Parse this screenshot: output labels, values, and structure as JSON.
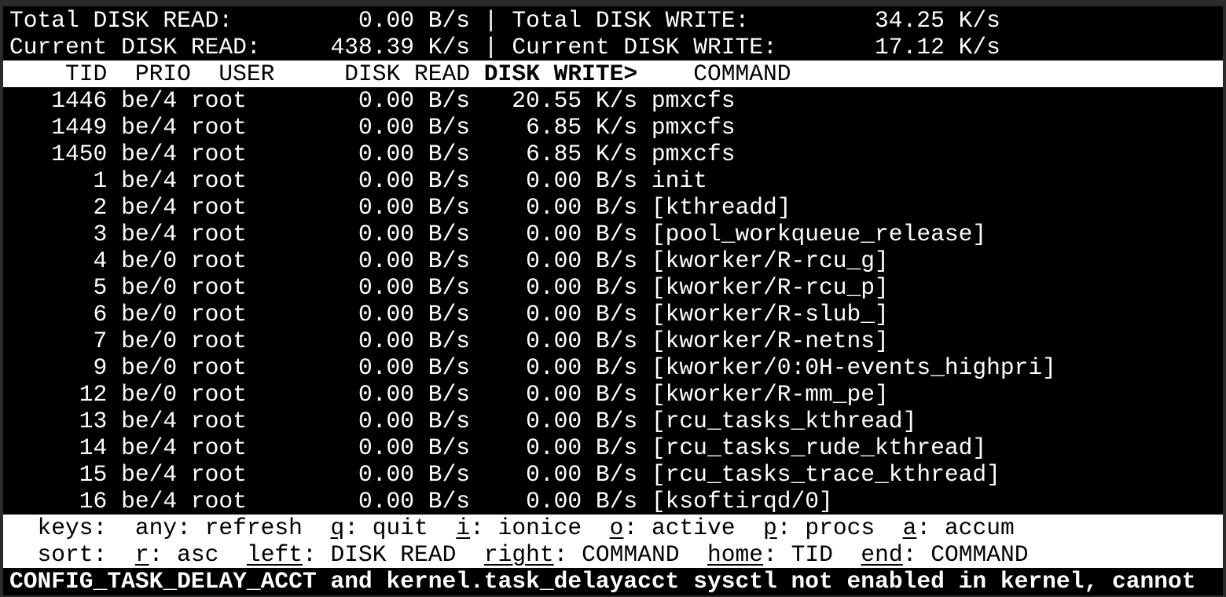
{
  "summary": {
    "total_read_label": "Total DISK READ:",
    "total_read": "0.00 B/s",
    "total_write_label": "Total DISK WRITE:",
    "total_write": "34.25 K/s",
    "current_read_label": "Current DISK READ:",
    "current_read": "438.39 K/s",
    "current_write_label": "Current DISK WRITE:",
    "current_write": "17.12 K/s",
    "separator": "|"
  },
  "header": {
    "tid": "TID",
    "prio": "PRIO",
    "user": "USER",
    "read": "DISK READ",
    "write": "DISK WRITE>",
    "command": "COMMAND"
  },
  "rows": [
    {
      "tid": "1446",
      "prio": "be/4",
      "user": "root",
      "read": "0.00 B/s",
      "write": "20.55 K/s",
      "command": "pmxcfs"
    },
    {
      "tid": "1449",
      "prio": "be/4",
      "user": "root",
      "read": "0.00 B/s",
      "write": "6.85 K/s",
      "command": "pmxcfs"
    },
    {
      "tid": "1450",
      "prio": "be/4",
      "user": "root",
      "read": "0.00 B/s",
      "write": "6.85 K/s",
      "command": "pmxcfs"
    },
    {
      "tid": "1",
      "prio": "be/4",
      "user": "root",
      "read": "0.00 B/s",
      "write": "0.00 B/s",
      "command": "init"
    },
    {
      "tid": "2",
      "prio": "be/4",
      "user": "root",
      "read": "0.00 B/s",
      "write": "0.00 B/s",
      "command": "[kthreadd]"
    },
    {
      "tid": "3",
      "prio": "be/4",
      "user": "root",
      "read": "0.00 B/s",
      "write": "0.00 B/s",
      "command": "[pool_workqueue_release]"
    },
    {
      "tid": "4",
      "prio": "be/0",
      "user": "root",
      "read": "0.00 B/s",
      "write": "0.00 B/s",
      "command": "[kworker/R-rcu_g]"
    },
    {
      "tid": "5",
      "prio": "be/0",
      "user": "root",
      "read": "0.00 B/s",
      "write": "0.00 B/s",
      "command": "[kworker/R-rcu_p]"
    },
    {
      "tid": "6",
      "prio": "be/0",
      "user": "root",
      "read": "0.00 B/s",
      "write": "0.00 B/s",
      "command": "[kworker/R-slub_]"
    },
    {
      "tid": "7",
      "prio": "be/0",
      "user": "root",
      "read": "0.00 B/s",
      "write": "0.00 B/s",
      "command": "[kworker/R-netns]"
    },
    {
      "tid": "9",
      "prio": "be/0",
      "user": "root",
      "read": "0.00 B/s",
      "write": "0.00 B/s",
      "command": "[kworker/0:0H-events_highpri]"
    },
    {
      "tid": "12",
      "prio": "be/0",
      "user": "root",
      "read": "0.00 B/s",
      "write": "0.00 B/s",
      "command": "[kworker/R-mm_pe]"
    },
    {
      "tid": "13",
      "prio": "be/4",
      "user": "root",
      "read": "0.00 B/s",
      "write": "0.00 B/s",
      "command": "[rcu_tasks_kthread]"
    },
    {
      "tid": "14",
      "prio": "be/4",
      "user": "root",
      "read": "0.00 B/s",
      "write": "0.00 B/s",
      "command": "[rcu_tasks_rude_kthread]"
    },
    {
      "tid": "15",
      "prio": "be/4",
      "user": "root",
      "read": "0.00 B/s",
      "write": "0.00 B/s",
      "command": "[rcu_tasks_trace_kthread]"
    },
    {
      "tid": "16",
      "prio": "be/4",
      "user": "root",
      "read": "0.00 B/s",
      "write": "0.00 B/s",
      "command": "[ksoftirqd/0]"
    }
  ],
  "footer": {
    "keys": [
      {
        "t": "  keys:  any: refresh  "
      },
      {
        "t": "q",
        "u": true
      },
      {
        "t": ": quit  "
      },
      {
        "t": "i",
        "u": true
      },
      {
        "t": ": ionice  "
      },
      {
        "t": "o",
        "u": true
      },
      {
        "t": ": active  "
      },
      {
        "t": "p",
        "u": true
      },
      {
        "t": ": procs  "
      },
      {
        "t": "a",
        "u": true
      },
      {
        "t": ": accum"
      }
    ],
    "sort": [
      {
        "t": "  sort:  "
      },
      {
        "t": "r",
        "u": true
      },
      {
        "t": ": asc  "
      },
      {
        "t": "left",
        "u": true
      },
      {
        "t": ": DISK READ  "
      },
      {
        "t": "right",
        "u": true
      },
      {
        "t": ": COMMAND  "
      },
      {
        "t": "home",
        "u": true
      },
      {
        "t": ": TID  "
      },
      {
        "t": "end",
        "u": true
      },
      {
        "t": ": COMMAND"
      }
    ]
  },
  "warning": "CONFIG_TASK_DELAY_ACCT and kernel.task_delayacct sysctl not enabled in kernel, cannot"
}
